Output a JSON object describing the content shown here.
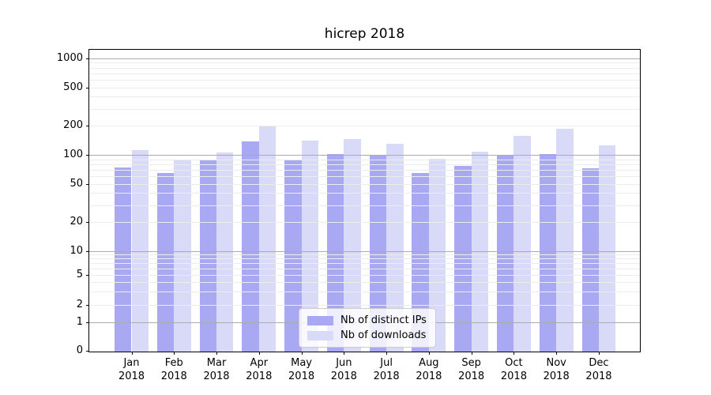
{
  "chart_data": {
    "type": "bar",
    "title": "hicrep 2018",
    "x_categories": [
      "Jan 2018",
      "Feb 2018",
      "Mar 2018",
      "Apr 2018",
      "May 2018",
      "Jun 2018",
      "Jul 2018",
      "Aug 2018",
      "Sep 2018",
      "Oct 2018",
      "Nov 2018",
      "Dec 2018"
    ],
    "x_tick_months": [
      "Jan",
      "Feb",
      "Mar",
      "Apr",
      "May",
      "Jun",
      "Jul",
      "Aug",
      "Sep",
      "Oct",
      "Nov",
      "Dec"
    ],
    "x_tick_year": "2018",
    "series": [
      {
        "name": "Nb of distinct IPs",
        "color": "#a9a9f3",
        "values": [
          75,
          66,
          88,
          140,
          88,
          103,
          99,
          66,
          78,
          99,
          103,
          74
        ]
      },
      {
        "name": "Nb of downloads",
        "color": "#d9d9f8",
        "values": [
          114,
          91,
          108,
          200,
          141,
          148,
          132,
          92,
          110,
          160,
          187,
          127
        ]
      }
    ],
    "y_axis": {
      "scale": "symlog",
      "tick_labels": [
        1000,
        500,
        200,
        100,
        50,
        20,
        10,
        5,
        2,
        1,
        0
      ],
      "ylim": [
        0,
        1000
      ],
      "grid": "horizontal major and minor, drawn over bars"
    },
    "legend": {
      "position": "inside-bottom-center",
      "labels": [
        "Nb of distinct IPs",
        "Nb of downloads"
      ]
    }
  }
}
